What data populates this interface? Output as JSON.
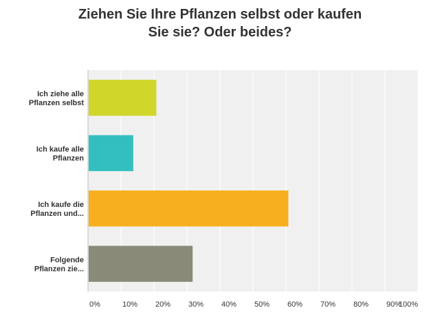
{
  "chart_data": {
    "type": "bar",
    "orientation": "horizontal",
    "title_lines": [
      "Ziehen Sie Ihre Pflanzen selbst oder kaufen",
      "Sie sie? Oder beides?"
    ],
    "categories": [
      [
        "Ich ziehe alle",
        "Pflanzen selbst"
      ],
      [
        "Ich kaufe alle",
        "Pflanzen"
      ],
      [
        "Ich kaufe die",
        "Pflanzen und..."
      ],
      [
        "Folgende",
        "Pflanzen zie..."
      ]
    ],
    "values": [
      20.5,
      13.5,
      60.5,
      31.5
    ],
    "colors": [
      "#d0d62a",
      "#33bfbf",
      "#f7af1f",
      "#8a8a78"
    ],
    "xlim": [
      0,
      100
    ],
    "xticks": [
      "0%",
      "10%",
      "20%",
      "30%",
      "40%",
      "50%",
      "60%",
      "70%",
      "80%",
      "90%",
      "100%"
    ],
    "grid": true,
    "plot_background": "#f0f0f0",
    "grid_color": "#ffffff"
  }
}
